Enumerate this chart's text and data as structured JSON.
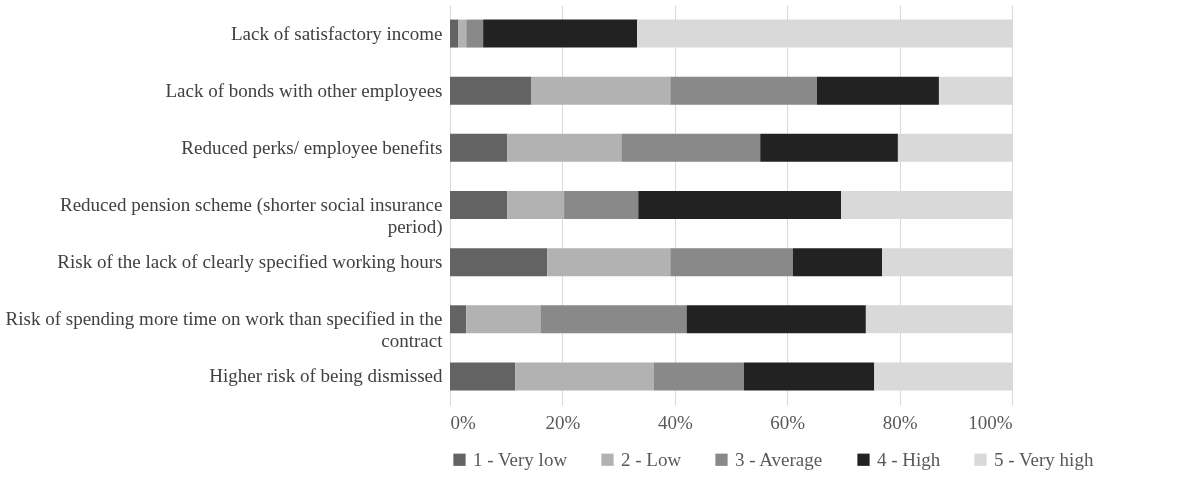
{
  "chart_data": {
    "type": "bar",
    "orientation": "horizontal",
    "stacked": true,
    "categories": [
      "Lack of satisfactory income",
      "Lack of bonds with other employees",
      "Reduced perks/ employee benefits",
      "Reduced pension scheme (shorter social insurance\nperiod)",
      "Risk of the lack of clearly specified working hours",
      "Risk of spending more time on work than specified in the\ncontract",
      "Higher risk of being dismissed"
    ],
    "series": [
      {
        "name": "1 - Very low",
        "color": "#636363",
        "values": [
          1.5,
          14.5,
          10.2,
          10.2,
          17.3,
          2.9,
          11.6
        ]
      },
      {
        "name": "2 - Low",
        "color": "#b2b2b2",
        "values": [
          1.4,
          24.7,
          20.3,
          10.1,
          21.9,
          13.2,
          24.7
        ]
      },
      {
        "name": "3 - Average",
        "color": "#898989",
        "values": [
          3.0,
          26.1,
          24.7,
          13.2,
          21.8,
          26.0,
          16.0
        ]
      },
      {
        "name": "4 - High",
        "color": "#222222",
        "values": [
          27.4,
          21.7,
          24.5,
          36.1,
          15.9,
          31.9,
          23.2
        ]
      },
      {
        "name": "5 - Very high",
        "color": "#d9d9d9",
        "values": [
          66.7,
          13.0,
          20.3,
          30.4,
          23.1,
          26.0,
          24.5
        ]
      }
    ],
    "xlim": [
      0,
      100
    ],
    "xticks": [
      {
        "value": 0,
        "label": "0%"
      },
      {
        "value": 20,
        "label": "20%"
      },
      {
        "value": 40,
        "label": "40%"
      },
      {
        "value": 60,
        "label": "60%"
      },
      {
        "value": 80,
        "label": "80%"
      },
      {
        "value": 100,
        "label": "100%"
      }
    ],
    "grid": "x",
    "legend": "bottom"
  }
}
